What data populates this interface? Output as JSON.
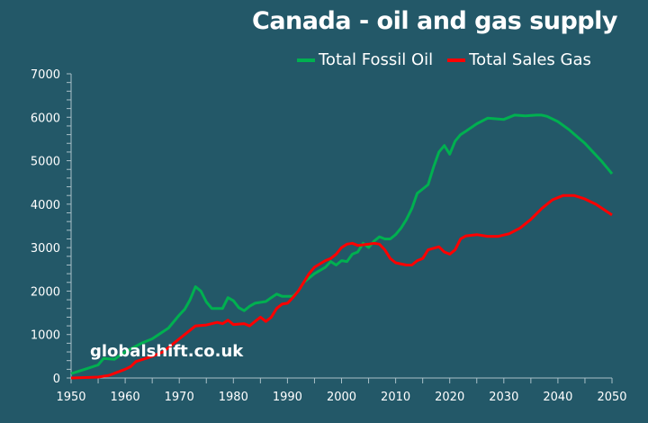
{
  "chart_data": {
    "type": "line",
    "title": "Canada - oil and gas supply",
    "xlabel": "",
    "ylabel": "",
    "xlim": [
      1950,
      2050
    ],
    "ylim": [
      0,
      7000
    ],
    "xticks": [
      1950,
      1960,
      1970,
      1980,
      1990,
      2000,
      2010,
      2020,
      2030,
      2040,
      2050
    ],
    "yticks": [
      0,
      1000,
      2000,
      3000,
      4000,
      5000,
      6000,
      7000
    ],
    "grid": false,
    "legend_position": "top-right",
    "watermark": "globalshift.co.uk",
    "series": [
      {
        "name": "Total Fossil Oil",
        "color": "#00b050",
        "points": [
          [
            1950,
            100
          ],
          [
            1953,
            220
          ],
          [
            1955,
            300
          ],
          [
            1956,
            450
          ],
          [
            1958,
            430
          ],
          [
            1960,
            600
          ],
          [
            1963,
            800
          ],
          [
            1965,
            900
          ],
          [
            1968,
            1150
          ],
          [
            1970,
            1450
          ],
          [
            1971,
            1580
          ],
          [
            1972,
            1800
          ],
          [
            1973,
            2100
          ],
          [
            1974,
            2000
          ],
          [
            1975,
            1750
          ],
          [
            1976,
            1600
          ],
          [
            1978,
            1600
          ],
          [
            1979,
            1850
          ],
          [
            1980,
            1780
          ],
          [
            1981,
            1620
          ],
          [
            1982,
            1550
          ],
          [
            1983,
            1650
          ],
          [
            1984,
            1720
          ],
          [
            1986,
            1760
          ],
          [
            1987,
            1850
          ],
          [
            1988,
            1930
          ],
          [
            1989,
            1880
          ],
          [
            1991,
            1880
          ],
          [
            1992,
            2000
          ],
          [
            1993,
            2200
          ],
          [
            1995,
            2400
          ],
          [
            1997,
            2550
          ],
          [
            1998,
            2680
          ],
          [
            1999,
            2600
          ],
          [
            2000,
            2700
          ],
          [
            2001,
            2680
          ],
          [
            2002,
            2850
          ],
          [
            2003,
            2900
          ],
          [
            2004,
            3100
          ],
          [
            2005,
            3000
          ],
          [
            2006,
            3150
          ],
          [
            2007,
            3250
          ],
          [
            2008,
            3200
          ],
          [
            2009,
            3200
          ],
          [
            2010,
            3300
          ],
          [
            2011,
            3450
          ],
          [
            2012,
            3650
          ],
          [
            2013,
            3900
          ],
          [
            2014,
            4250
          ],
          [
            2015,
            4350
          ],
          [
            2016,
            4450
          ],
          [
            2017,
            4850
          ],
          [
            2018,
            5200
          ],
          [
            2019,
            5350
          ],
          [
            2020,
            5150
          ],
          [
            2021,
            5450
          ],
          [
            2022,
            5600
          ],
          [
            2023,
            5680
          ],
          [
            2025,
            5850
          ],
          [
            2027,
            5980
          ],
          [
            2030,
            5950
          ],
          [
            2032,
            6050
          ],
          [
            2034,
            6030
          ],
          [
            2036,
            6050
          ],
          [
            2037,
            6050
          ],
          [
            2038,
            6020
          ],
          [
            2040,
            5900
          ],
          [
            2042,
            5720
          ],
          [
            2045,
            5400
          ],
          [
            2048,
            5000
          ],
          [
            2050,
            4700
          ]
        ]
      },
      {
        "name": "Total Sales Gas",
        "color": "#ff0000",
        "points": [
          [
            1950,
            0
          ],
          [
            1955,
            20
          ],
          [
            1957,
            60
          ],
          [
            1960,
            200
          ],
          [
            1961,
            260
          ],
          [
            1962,
            380
          ],
          [
            1965,
            500
          ],
          [
            1967,
            600
          ],
          [
            1968,
            700
          ],
          [
            1970,
            900
          ],
          [
            1972,
            1100
          ],
          [
            1973,
            1200
          ],
          [
            1975,
            1220
          ],
          [
            1977,
            1280
          ],
          [
            1978,
            1250
          ],
          [
            1979,
            1330
          ],
          [
            1980,
            1230
          ],
          [
            1982,
            1250
          ],
          [
            1983,
            1200
          ],
          [
            1984,
            1300
          ],
          [
            1985,
            1400
          ],
          [
            1986,
            1300
          ],
          [
            1987,
            1400
          ],
          [
            1988,
            1600
          ],
          [
            1989,
            1700
          ],
          [
            1990,
            1720
          ],
          [
            1991,
            1850
          ],
          [
            1992,
            2000
          ],
          [
            1993,
            2200
          ],
          [
            1994,
            2400
          ],
          [
            1995,
            2550
          ],
          [
            1997,
            2700
          ],
          [
            1998,
            2750
          ],
          [
            1999,
            2850
          ],
          [
            2000,
            3000
          ],
          [
            2001,
            3080
          ],
          [
            2002,
            3100
          ],
          [
            2003,
            3050
          ],
          [
            2005,
            3080
          ],
          [
            2006,
            3100
          ],
          [
            2007,
            3080
          ],
          [
            2008,
            2950
          ],
          [
            2009,
            2750
          ],
          [
            2010,
            2650
          ],
          [
            2012,
            2600
          ],
          [
            2013,
            2600
          ],
          [
            2014,
            2700
          ],
          [
            2015,
            2750
          ],
          [
            2016,
            2950
          ],
          [
            2018,
            3020
          ],
          [
            2019,
            2900
          ],
          [
            2020,
            2850
          ],
          [
            2021,
            2950
          ],
          [
            2022,
            3200
          ],
          [
            2023,
            3270
          ],
          [
            2025,
            3300
          ],
          [
            2027,
            3260
          ],
          [
            2029,
            3260
          ],
          [
            2031,
            3320
          ],
          [
            2033,
            3450
          ],
          [
            2035,
            3650
          ],
          [
            2037,
            3900
          ],
          [
            2039,
            4100
          ],
          [
            2041,
            4200
          ],
          [
            2043,
            4200
          ],
          [
            2045,
            4120
          ],
          [
            2047,
            4000
          ],
          [
            2050,
            3750
          ]
        ]
      }
    ]
  }
}
